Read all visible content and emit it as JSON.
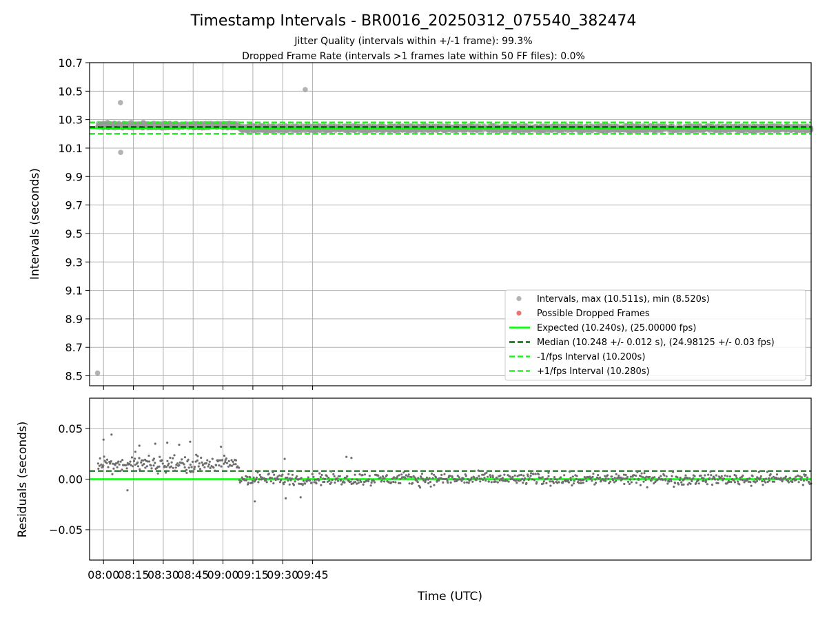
{
  "chart_data": [
    {
      "type": "scatter",
      "title": "Timestamp Intervals - BR0016_20250312_075540_382474",
      "subtitle_lines": [
        "Jitter Quality (intervals within +/-1 frame): 99.3%",
        "Dropped Frame Rate (intervals >1 frames late within 50 FF files): 0.0%"
      ],
      "xlabel": "",
      "ylabel": "Intervals (seconds)",
      "x_unit": "minutes after midnight UTC",
      "xlim": [
        473.0,
        835.4
      ],
      "ylim": [
        8.43,
        10.7
      ],
      "y_ticks": [
        "10.7",
        "10.5",
        "10.3",
        "10.1",
        "9.9",
        "9.7",
        "9.5",
        "9.3",
        "9.1",
        "8.9",
        "8.7",
        "8.5"
      ],
      "y_tick_values": [
        10.7,
        10.5,
        10.3,
        10.1,
        9.9,
        9.7,
        9.5,
        9.3,
        9.1,
        8.9,
        8.7,
        8.5
      ],
      "grid": true,
      "legend_position": "lower-right",
      "legend": [
        "Intervals, max (10.511s), min (8.520s)",
        "Possible Dropped Frames",
        "Expected (10.240s), (25.00000 fps)",
        "Median (10.248 +/- 0.012 s), (24.98125 +/- 0.03 fps)",
        "-1/fps Interval (10.200s)",
        "+1/fps Interval (10.280s)"
      ],
      "reference_lines": {
        "expected": 10.24,
        "median": 10.248,
        "minus_one_fps": 10.2,
        "plus_one_fps": 10.28
      },
      "series": [
        {
          "name": "Intervals, max (10.511s), min (8.520s)",
          "points": [
            [
              477.0,
              8.52
            ],
            [
              488.5,
              10.42
            ],
            [
              488.6,
              10.07
            ],
            [
              581.3,
              10.511
            ],
            [
              478.5,
              10.27
            ],
            [
              482.0,
              10.28
            ],
            [
              500.0,
              10.28
            ],
            [
              487.5,
              10.27
            ],
            [
              494.0,
              10.28
            ],
            [
              500.5,
              10.27
            ]
          ],
          "band_segments": [
            {
              "x_from": 477.0,
              "x_to": 548.0,
              "y_low": 10.24,
              "y_high": 10.275
            },
            {
              "x_from": 548.0,
              "x_to": 835.4,
              "y_low": 10.22,
              "y_high": 10.258
            }
          ]
        },
        {
          "name": "Possible Dropped Frames",
          "points": []
        }
      ],
      "colors": {
        "intervals": "#999999",
        "dropped": "#e85050",
        "expected": "#00ff00",
        "median": "#006400",
        "fps_band": "#22ee22"
      }
    },
    {
      "type": "scatter",
      "title": "",
      "xlabel": "Time (UTC)",
      "ylabel": "Residuals (seconds)",
      "x_unit": "minutes after midnight UTC",
      "xlim": [
        473.0,
        835.4
      ],
      "ylim": [
        -0.08,
        0.08
      ],
      "x_ticks": [
        "08:00",
        "08:15",
        "08:30",
        "08:45",
        "09:00",
        "09:15",
        "09:30",
        "09:45"
      ],
      "x_tick_values": [
        480,
        495,
        510,
        525,
        540,
        555,
        570,
        585
      ],
      "y_ticks": [
        "0.05",
        "0.00",
        "−0.05"
      ],
      "y_tick_values": [
        0.05,
        0.0,
        -0.05
      ],
      "grid": true,
      "reference_lines": {
        "zero": 0.0,
        "median_offset": 0.008
      },
      "residual_envelope": [
        {
          "x_from": 477.0,
          "x_to": 548.0,
          "center": 0.015,
          "spread": 0.012
        },
        {
          "x_from": 548.0,
          "x_to": 835.4,
          "center": 0.0,
          "spread": 0.009
        }
      ],
      "residual_outliers": [
        [
          480.0,
          0.039
        ],
        [
          484.0,
          0.044
        ],
        [
          498.0,
          0.033
        ],
        [
          506.0,
          0.035
        ],
        [
          512.0,
          0.036
        ],
        [
          523.5,
          0.037
        ],
        [
          539.0,
          0.032
        ],
        [
          492.0,
          -0.011
        ],
        [
          496.0,
          0.027
        ],
        [
          518.0,
          0.034
        ],
        [
          571.0,
          0.02
        ],
        [
          579.0,
          -0.018
        ],
        [
          556.0,
          -0.022
        ],
        [
          571.5,
          -0.019
        ],
        [
          602.0,
          0.022
        ],
        [
          604.5,
          0.021
        ]
      ],
      "colors": {
        "points": "#6e6e6e",
        "zero": "#00ff00",
        "median": "#006400"
      }
    }
  ]
}
